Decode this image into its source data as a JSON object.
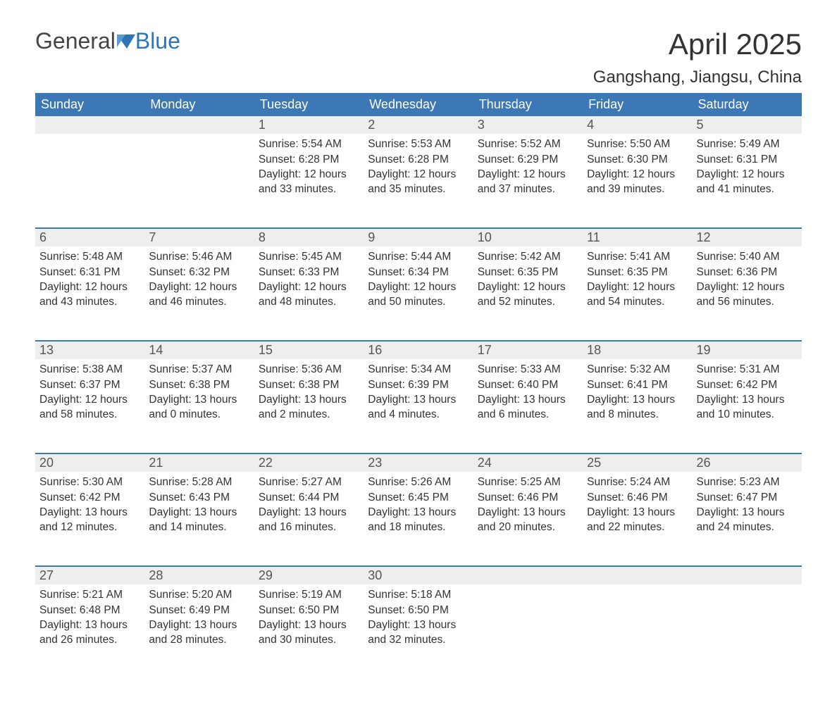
{
  "logo": {
    "word1": "General",
    "word2": "Blue"
  },
  "title": "April 2025",
  "subtitle": "Gangshang, Jiangsu, China",
  "colors": {
    "header_bg": "#3b78b5",
    "header_text": "#ffffff",
    "daynum_bg": "#eeeeee",
    "daynum_border": "#3b78b5",
    "body_text": "#333333",
    "logo_blue": "#2e75b6"
  },
  "day_names": [
    "Sunday",
    "Monday",
    "Tuesday",
    "Wednesday",
    "Thursday",
    "Friday",
    "Saturday"
  ],
  "labels": {
    "sunrise": "Sunrise: ",
    "sunset": "Sunset: ",
    "daylight": "Daylight: "
  },
  "weeks": [
    [
      null,
      null,
      {
        "n": "1",
        "sunrise": "5:54 AM",
        "sunset": "6:28 PM",
        "dl1": "12 hours",
        "dl2": "and 33 minutes."
      },
      {
        "n": "2",
        "sunrise": "5:53 AM",
        "sunset": "6:28 PM",
        "dl1": "12 hours",
        "dl2": "and 35 minutes."
      },
      {
        "n": "3",
        "sunrise": "5:52 AM",
        "sunset": "6:29 PM",
        "dl1": "12 hours",
        "dl2": "and 37 minutes."
      },
      {
        "n": "4",
        "sunrise": "5:50 AM",
        "sunset": "6:30 PM",
        "dl1": "12 hours",
        "dl2": "and 39 minutes."
      },
      {
        "n": "5",
        "sunrise": "5:49 AM",
        "sunset": "6:31 PM",
        "dl1": "12 hours",
        "dl2": "and 41 minutes."
      }
    ],
    [
      {
        "n": "6",
        "sunrise": "5:48 AM",
        "sunset": "6:31 PM",
        "dl1": "12 hours",
        "dl2": "and 43 minutes."
      },
      {
        "n": "7",
        "sunrise": "5:46 AM",
        "sunset": "6:32 PM",
        "dl1": "12 hours",
        "dl2": "and 46 minutes."
      },
      {
        "n": "8",
        "sunrise": "5:45 AM",
        "sunset": "6:33 PM",
        "dl1": "12 hours",
        "dl2": "and 48 minutes."
      },
      {
        "n": "9",
        "sunrise": "5:44 AM",
        "sunset": "6:34 PM",
        "dl1": "12 hours",
        "dl2": "and 50 minutes."
      },
      {
        "n": "10",
        "sunrise": "5:42 AM",
        "sunset": "6:35 PM",
        "dl1": "12 hours",
        "dl2": "and 52 minutes."
      },
      {
        "n": "11",
        "sunrise": "5:41 AM",
        "sunset": "6:35 PM",
        "dl1": "12 hours",
        "dl2": "and 54 minutes."
      },
      {
        "n": "12",
        "sunrise": "5:40 AM",
        "sunset": "6:36 PM",
        "dl1": "12 hours",
        "dl2": "and 56 minutes."
      }
    ],
    [
      {
        "n": "13",
        "sunrise": "5:38 AM",
        "sunset": "6:37 PM",
        "dl1": "12 hours",
        "dl2": "and 58 minutes."
      },
      {
        "n": "14",
        "sunrise": "5:37 AM",
        "sunset": "6:38 PM",
        "dl1": "13 hours",
        "dl2": "and 0 minutes."
      },
      {
        "n": "15",
        "sunrise": "5:36 AM",
        "sunset": "6:38 PM",
        "dl1": "13 hours",
        "dl2": "and 2 minutes."
      },
      {
        "n": "16",
        "sunrise": "5:34 AM",
        "sunset": "6:39 PM",
        "dl1": "13 hours",
        "dl2": "and 4 minutes."
      },
      {
        "n": "17",
        "sunrise": "5:33 AM",
        "sunset": "6:40 PM",
        "dl1": "13 hours",
        "dl2": "and 6 minutes."
      },
      {
        "n": "18",
        "sunrise": "5:32 AM",
        "sunset": "6:41 PM",
        "dl1": "13 hours",
        "dl2": "and 8 minutes."
      },
      {
        "n": "19",
        "sunrise": "5:31 AM",
        "sunset": "6:42 PM",
        "dl1": "13 hours",
        "dl2": "and 10 minutes."
      }
    ],
    [
      {
        "n": "20",
        "sunrise": "5:30 AM",
        "sunset": "6:42 PM",
        "dl1": "13 hours",
        "dl2": "and 12 minutes."
      },
      {
        "n": "21",
        "sunrise": "5:28 AM",
        "sunset": "6:43 PM",
        "dl1": "13 hours",
        "dl2": "and 14 minutes."
      },
      {
        "n": "22",
        "sunrise": "5:27 AM",
        "sunset": "6:44 PM",
        "dl1": "13 hours",
        "dl2": "and 16 minutes."
      },
      {
        "n": "23",
        "sunrise": "5:26 AM",
        "sunset": "6:45 PM",
        "dl1": "13 hours",
        "dl2": "and 18 minutes."
      },
      {
        "n": "24",
        "sunrise": "5:25 AM",
        "sunset": "6:46 PM",
        "dl1": "13 hours",
        "dl2": "and 20 minutes."
      },
      {
        "n": "25",
        "sunrise": "5:24 AM",
        "sunset": "6:46 PM",
        "dl1": "13 hours",
        "dl2": "and 22 minutes."
      },
      {
        "n": "26",
        "sunrise": "5:23 AM",
        "sunset": "6:47 PM",
        "dl1": "13 hours",
        "dl2": "and 24 minutes."
      }
    ],
    [
      {
        "n": "27",
        "sunrise": "5:21 AM",
        "sunset": "6:48 PM",
        "dl1": "13 hours",
        "dl2": "and 26 minutes."
      },
      {
        "n": "28",
        "sunrise": "5:20 AM",
        "sunset": "6:49 PM",
        "dl1": "13 hours",
        "dl2": "and 28 minutes."
      },
      {
        "n": "29",
        "sunrise": "5:19 AM",
        "sunset": "6:50 PM",
        "dl1": "13 hours",
        "dl2": "and 30 minutes."
      },
      {
        "n": "30",
        "sunrise": "5:18 AM",
        "sunset": "6:50 PM",
        "dl1": "13 hours",
        "dl2": "and 32 minutes."
      },
      null,
      null,
      null
    ]
  ]
}
